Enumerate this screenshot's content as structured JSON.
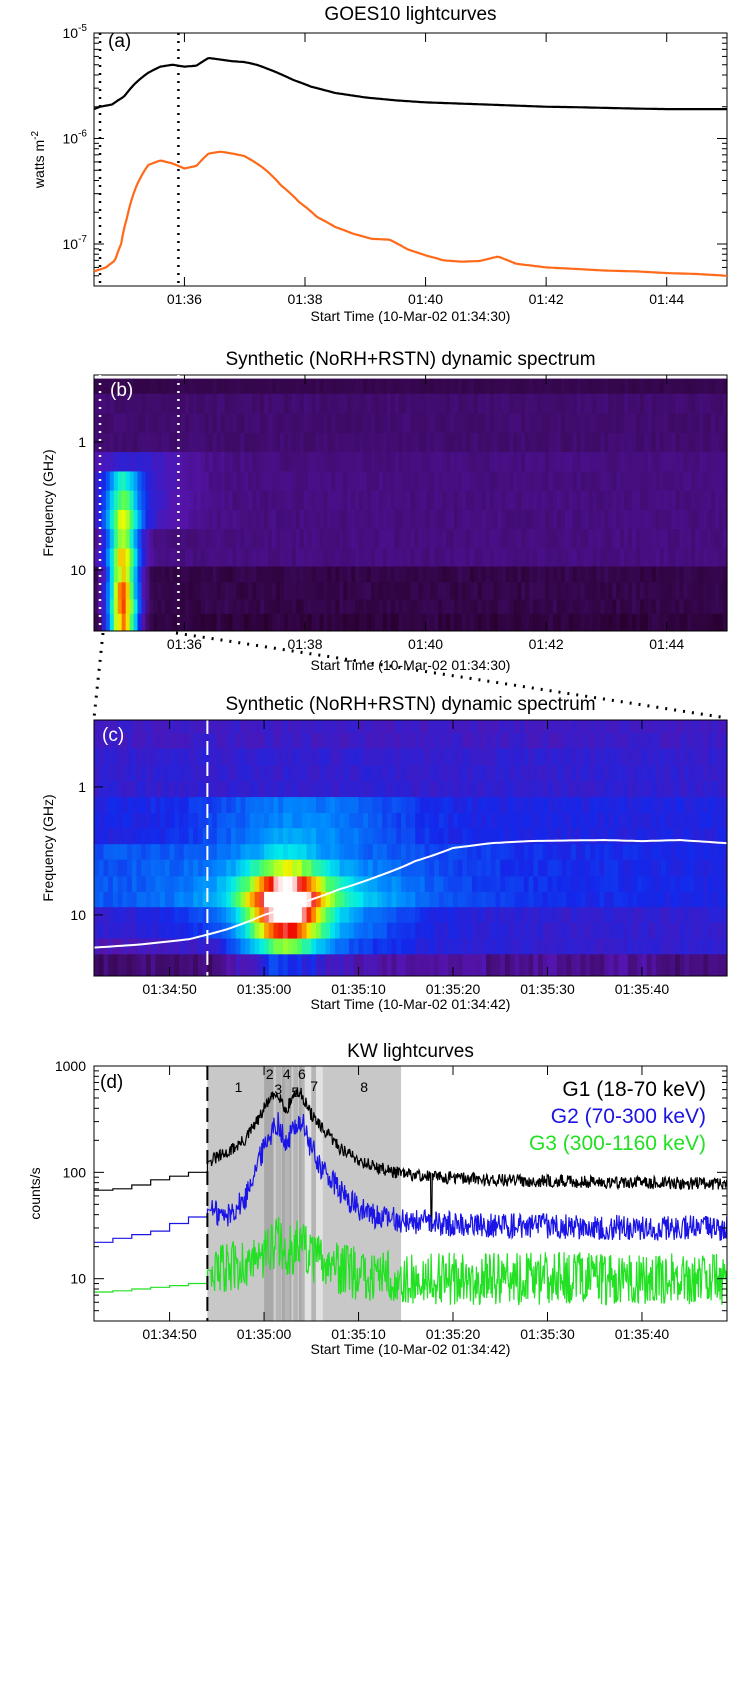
{
  "chart_data": [
    {
      "panel": "a",
      "type": "line",
      "title": "GOES10 lightcurves",
      "label": "(a)",
      "xlabel": "Start Time (10-Mar-02 01:34:30)",
      "ylabel": "watts m",
      "ylabel_sup": "-2",
      "yscale": "log",
      "xlim_min": [
        0,
        15.5
      ],
      "ylim": [
        4e-08,
        1e-05
      ],
      "xticks": [
        {
          "t": 1.5,
          "label": "01:36"
        },
        {
          "t": 3.5,
          "label": "01:38"
        },
        {
          "t": 5.5,
          "label": "01:40"
        },
        {
          "t": 7.5,
          "label": "01:42"
        },
        {
          "t": 9.5,
          "label": "01:44"
        }
      ],
      "yticks": [
        {
          "v": 1e-07,
          "base": "10",
          "exp": "-7"
        },
        {
          "v": 1e-06,
          "base": "10",
          "exp": "-6"
        },
        {
          "v": 1e-05,
          "base": "10",
          "exp": "-5"
        }
      ],
      "markers_min": [
        0.1,
        1.4
      ],
      "series": [
        {
          "color": "#000000",
          "x": [
            0,
            0.1,
            0.3,
            0.5,
            0.7,
            0.9,
            1.1,
            1.3,
            1.5,
            1.7,
            1.9,
            2.1,
            2.3,
            2.5,
            2.7,
            3.0,
            3.3,
            3.6,
            4.0,
            4.5,
            5.0,
            5.5,
            6.0,
            6.5,
            7.0,
            7.5,
            8.0,
            8.5,
            9.0,
            9.5,
            10.0,
            10.5
          ],
          "y": [
            1.9e-06,
            2e-06,
            2.1e-06,
            2.5e-06,
            3.4e-06,
            4.2e-06,
            4.8e-06,
            5e-06,
            4.8e-06,
            4.9e-06,
            5.8e-06,
            5.6e-06,
            5.4e-06,
            5.3e-06,
            5e-06,
            4.3e-06,
            3.6e-06,
            3.1e-06,
            2.7e-06,
            2.45e-06,
            2.3e-06,
            2.2e-06,
            2.15e-06,
            2.1e-06,
            2.05e-06,
            2e-06,
            1.98e-06,
            1.95e-06,
            1.92e-06,
            1.9e-06,
            1.9e-06,
            1.9e-06
          ]
        },
        {
          "color": "#ff6a1a",
          "x": [
            0,
            0.2,
            0.35,
            0.45,
            0.55,
            0.7,
            0.9,
            1.1,
            1.3,
            1.5,
            1.7,
            1.9,
            2.1,
            2.3,
            2.5,
            2.8,
            3.1,
            3.4,
            3.7,
            4.0,
            4.3,
            4.6,
            4.9,
            5.2,
            5.5,
            5.8,
            6.1,
            6.4,
            6.7,
            7.0,
            7.5,
            8.0,
            8.5,
            9.0,
            9.5,
            10.0,
            10.5
          ],
          "y": [
            5.5e-08,
            6e-08,
            7e-08,
            1e-07,
            1.8e-07,
            3.5e-07,
            5.6e-07,
            6.2e-07,
            5.8e-07,
            5.2e-07,
            5.5e-07,
            7.2e-07,
            7.5e-07,
            7.2e-07,
            6.8e-07,
            5.3e-07,
            3.6e-07,
            2.5e-07,
            1.8e-07,
            1.45e-07,
            1.25e-07,
            1.12e-07,
            1.1e-07,
            8.9e-08,
            7.8e-08,
            7e-08,
            6.8e-08,
            6.9e-08,
            7.6e-08,
            6.5e-08,
            6e-08,
            5.8e-08,
            5.6e-08,
            5.5e-08,
            5.3e-08,
            5.2e-08,
            5e-08
          ]
        }
      ]
    },
    {
      "panel": "b",
      "type": "heatmap",
      "title": "Synthetic (NoRH+RSTN) dynamic spectrum",
      "label": "(b)",
      "xlabel": "Start Time (10-Mar-02 01:34:30)",
      "ylabel": "Frequency (GHz)",
      "yscale": "log",
      "ylim": [
        0.3,
        30
      ],
      "xlim_min": [
        0,
        15.5
      ],
      "xticks": [
        {
          "t": 1.5,
          "label": "01:36"
        },
        {
          "t": 3.5,
          "label": "01:38"
        },
        {
          "t": 5.5,
          "label": "01:40"
        },
        {
          "t": 7.5,
          "label": "01:42"
        },
        {
          "t": 9.5,
          "label": "01:44"
        }
      ],
      "yticks": [
        {
          "v": 1,
          "label": "1"
        },
        {
          "v": 10,
          "label": "10"
        }
      ],
      "markers_min": [
        0.1,
        1.4
      ]
    },
    {
      "panel": "c",
      "type": "heatmap",
      "title": "Synthetic (NoRH+RSTN) dynamic spectrum",
      "label": "(c)",
      "xlabel": "Start Time (10-Mar-02 01:34:42)",
      "ylabel": "Frequency (GHz)",
      "yscale": "log",
      "ylim": [
        0.3,
        30
      ],
      "xlim_s": [
        0,
        67
      ],
      "xticks": [
        {
          "t": 8,
          "label": "01:34:50"
        },
        {
          "t": 18,
          "label": "01:35:00"
        },
        {
          "t": 28,
          "label": "01:35:10"
        },
        {
          "t": 38,
          "label": "01:35:20"
        },
        {
          "t": 48,
          "label": "01:35:30"
        },
        {
          "t": 58,
          "label": "01:35:40"
        }
      ],
      "yticks": [
        {
          "v": 1,
          "label": "1"
        },
        {
          "v": 10,
          "label": "10"
        }
      ],
      "marker_s": 12,
      "overlay": {
        "t": [
          0,
          5,
          10,
          14,
          18,
          22,
          26,
          30,
          34,
          38,
          42,
          46,
          50,
          54,
          58,
          62,
          67
        ],
        "f": [
          18,
          17,
          15.5,
          13,
          10,
          8,
          6.3,
          5.0,
          3.8,
          3.0,
          2.75,
          2.65,
          2.62,
          2.6,
          2.65,
          2.6,
          2.75
        ]
      }
    },
    {
      "panel": "d",
      "type": "line",
      "title": "KW lightcurves",
      "label": "(d)",
      "xlabel": "Start Time (10-Mar-02 01:34:42)",
      "ylabel": "counts/s",
      "yscale": "log",
      "ylim": [
        4,
        1000
      ],
      "xlim_s": [
        0,
        67
      ],
      "xticks": [
        {
          "t": 8,
          "label": "01:34:50"
        },
        {
          "t": 18,
          "label": "01:35:00"
        },
        {
          "t": 28,
          "label": "01:35:10"
        },
        {
          "t": 38,
          "label": "01:35:20"
        },
        {
          "t": 48,
          "label": "01:35:30"
        },
        {
          "t": 58,
          "label": "01:35:40"
        }
      ],
      "yticks": [
        {
          "v": 10,
          "label": "10"
        },
        {
          "v": 100,
          "label": "100"
        },
        {
          "v": 1000,
          "label": "1000"
        }
      ],
      "marker_s": 12,
      "intervals": [
        {
          "label": "1",
          "start": 12.0,
          "end": 18.0
        },
        {
          "label": "2",
          "start": 18.0,
          "end": 19.0
        },
        {
          "label": "3",
          "start": 19.0,
          "end": 19.9
        },
        {
          "label": "4",
          "start": 19.9,
          "end": 20.9
        },
        {
          "label": "5",
          "start": 20.9,
          "end": 21.7
        },
        {
          "label": "6",
          "start": 21.7,
          "end": 22.3
        },
        {
          "label": "7",
          "start": 22.3,
          "end": 24.2
        },
        {
          "label": "8",
          "start": 24.2,
          "end": 32.5
        }
      ],
      "series": [
        {
          "name": "G1 (18-70 keV)",
          "color": "#000000",
          "x": [
            0,
            12,
            14,
            16,
            17.5,
            18.5,
            19.5,
            20.3,
            21.3,
            22,
            22.8,
            24,
            26,
            28,
            30,
            33,
            37,
            42,
            50,
            58,
            67
          ],
          "y": [
            70,
            125,
            150,
            200,
            320,
            470,
            560,
            370,
            560,
            540,
            370,
            260,
            170,
            130,
            110,
            95,
            90,
            85,
            82,
            80,
            78
          ],
          "pre_steps": {
            "x": [
              0,
              2,
              4,
              6,
              8,
              10,
              12
            ],
            "y": [
              68,
              70,
              76,
              85,
              92,
              100,
              120
            ]
          },
          "noise": 0.06
        },
        {
          "name": "G2 (70-300 keV)",
          "color": "#1a14e6",
          "x": [
            0,
            12,
            14,
            16,
            17.5,
            18.5,
            19.5,
            20.3,
            21.3,
            22,
            22.8,
            24,
            26,
            28,
            30,
            33,
            37,
            42,
            50,
            58,
            67
          ],
          "y": [
            22,
            45,
            38,
            55,
            130,
            220,
            300,
            170,
            280,
            300,
            180,
            110,
            65,
            45,
            38,
            35,
            33,
            32,
            31,
            30,
            30
          ],
          "pre_steps": {
            "x": [
              0,
              2,
              4,
              6,
              8,
              10,
              12
            ],
            "y": [
              22,
              24,
              26,
              28,
              33,
              38,
              44
            ]
          },
          "noise": 0.12
        },
        {
          "name": "G3 (300-1160 keV)",
          "color": "#22e022",
          "x": [
            0,
            12,
            14,
            16,
            18,
            19.5,
            20.5,
            21.5,
            22,
            23,
            25,
            28,
            32,
            40,
            50,
            67
          ],
          "y": [
            7.5,
            12,
            12,
            14,
            16,
            22,
            18,
            20,
            21,
            16,
            13,
            11,
            10,
            10,
            10,
            10
          ],
          "pre_steps": {
            "x": [
              0,
              2,
              4,
              6,
              8,
              10,
              12
            ],
            "y": [
              7.5,
              7.7,
              8,
              8.3,
              8.6,
              9,
              10
            ]
          },
          "noise": 0.25
        }
      ]
    }
  ]
}
